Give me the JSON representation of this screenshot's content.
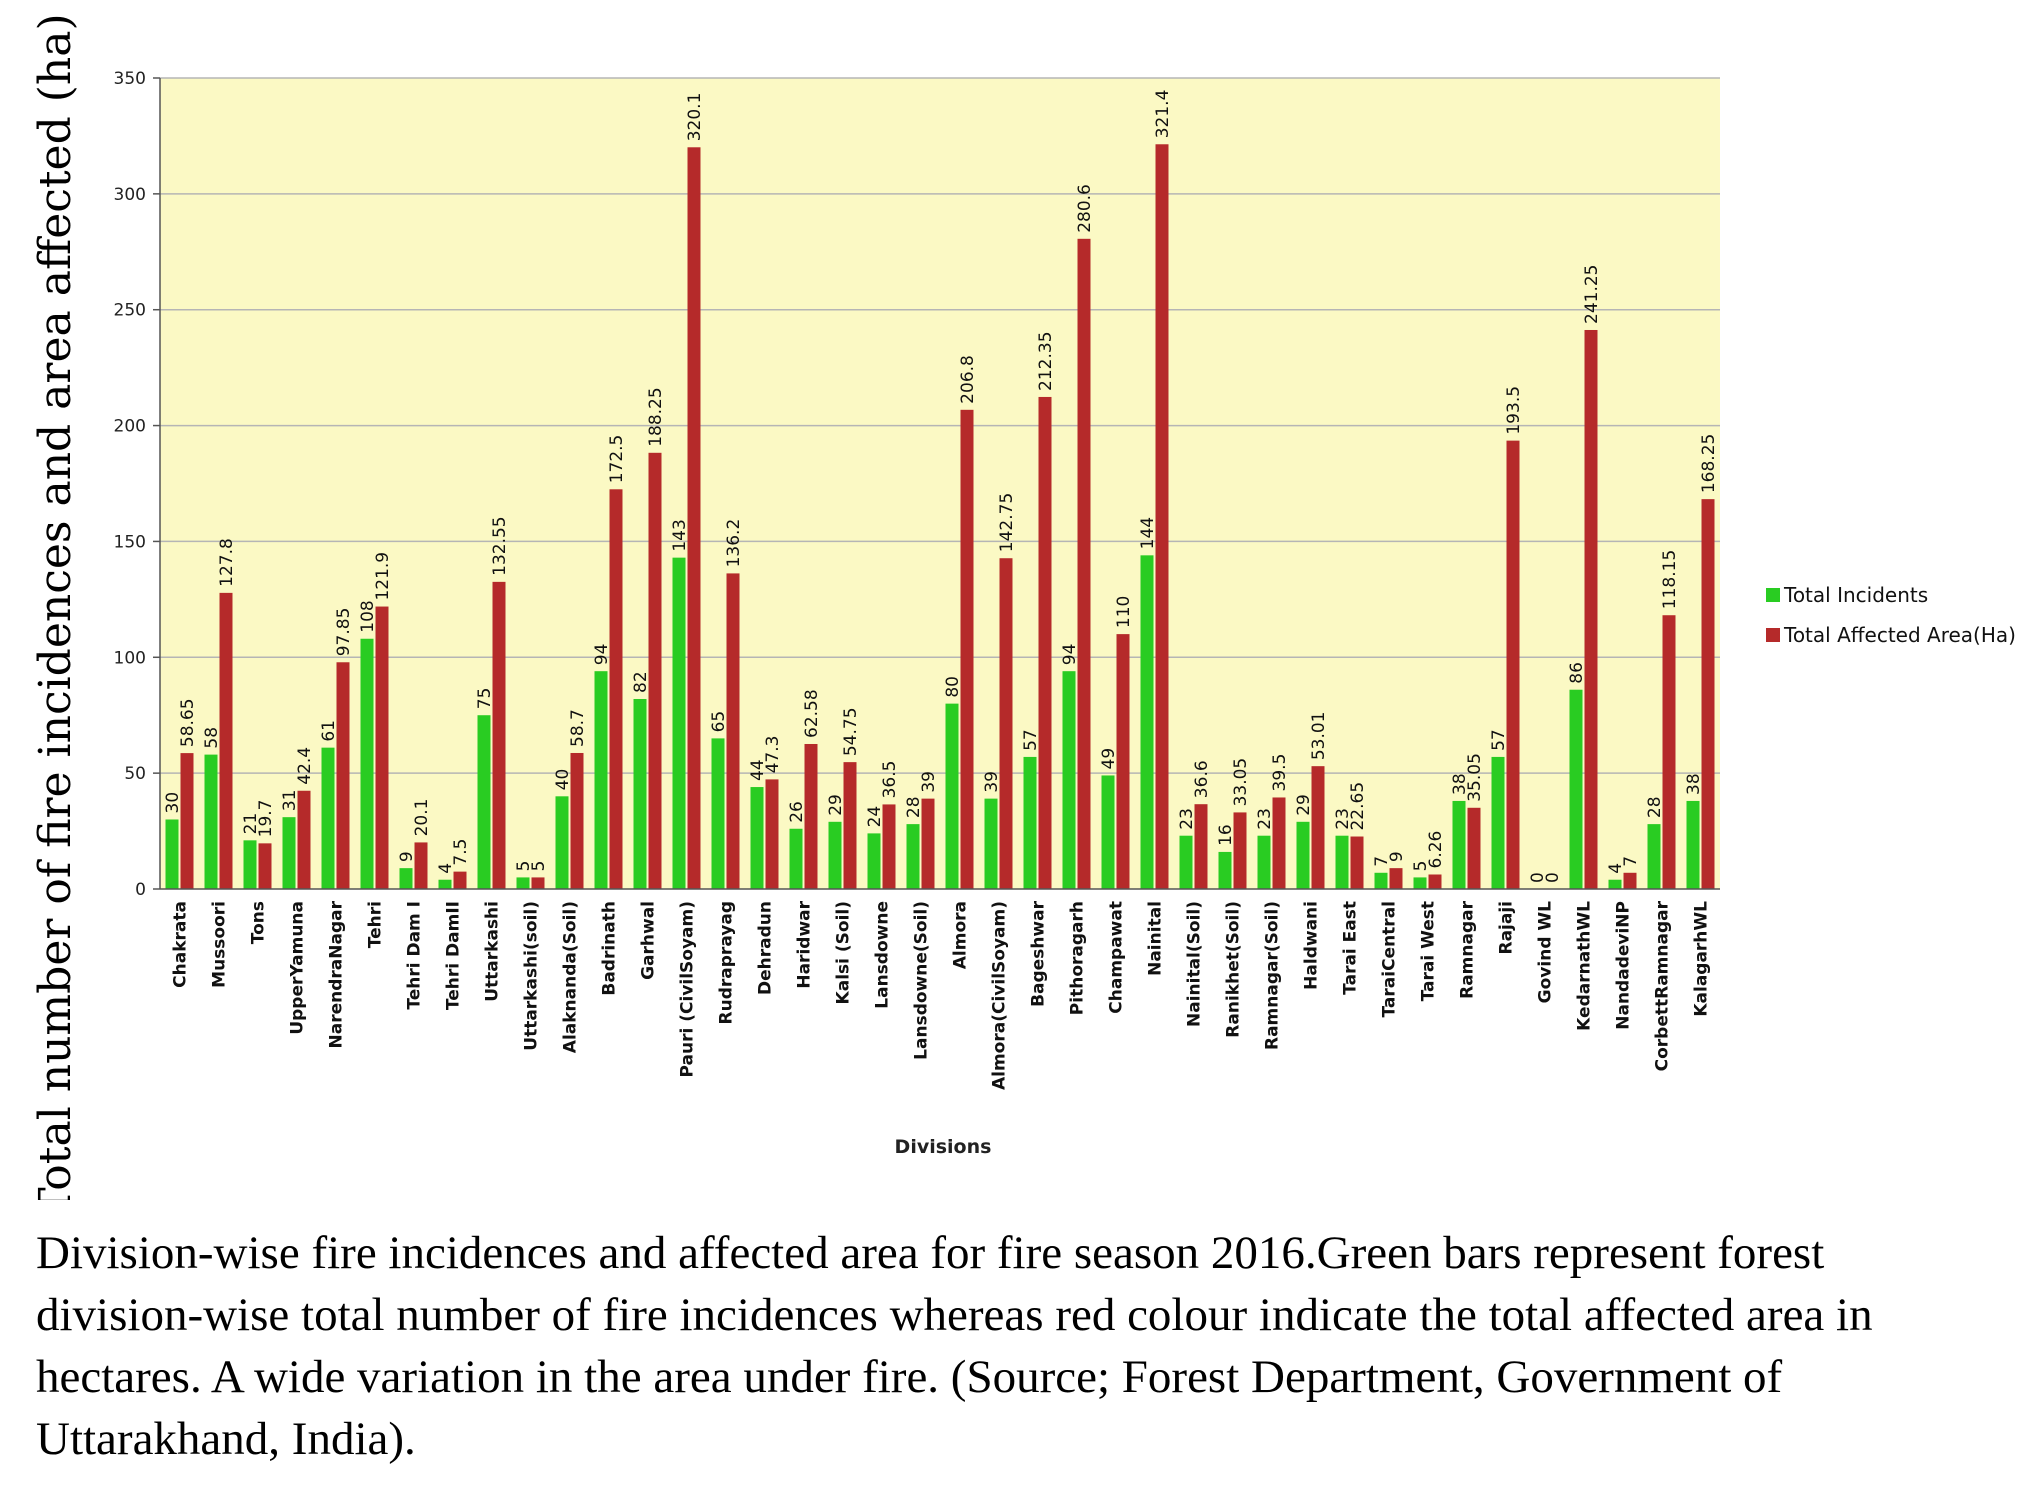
{
  "caption": "Division-wise fire incidences and affected area for fire season 2016.Green bars represent forest division-wise total number of fire incidences whereas red colour indicate the total affected area in hectares. A wide variation in the area under fire. (Source; Forest Department, Government of Uttarakhand, India).",
  "colors": {
    "plot_background": "#fbf9c4",
    "grid": "#b5b5b5",
    "incidents": "#29cc22",
    "area": "#b52a2a"
  },
  "chart_data": {
    "type": "bar",
    "xlabel": "Divisions",
    "ylabel": "Total number of fire incidences and area affected (ha)",
    "ylim": [
      0,
      350
    ],
    "yticks": [
      0,
      50,
      100,
      150,
      200,
      250,
      300,
      350
    ],
    "grid": true,
    "legend_position": "right",
    "categories": [
      "Chakrata",
      "Mussoori",
      "Tons",
      "UpperYamuna",
      "NarendraNagar",
      "Tehri",
      "Tehri Dam I",
      "Tehri DamII",
      "Uttarkashi",
      "Uttarkashi(soil)",
      "Alaknanda(Soil)",
      "Badrinath",
      "Garhwal",
      "Pauri (CivilSoyam)",
      "Rudraprayag",
      "Dehradun",
      "Haridwar",
      "Kalsi (Soil)",
      "Lansdowne",
      "Lansdowne(Soil)",
      "Almora",
      "Almora(CivilSoyam)",
      "Bageshwar",
      "Pithoragarh",
      "Champawat",
      "Nainital",
      "Nainital(Soil)",
      "Ranikhet(Soil)",
      "Ramnagar(Soil)",
      "Haldwani",
      "Tarai East",
      "TaraiCentral",
      "Tarai West",
      "Ramnagar",
      "Rajaji",
      "Govind WL",
      "KedarnathWL",
      "NandadeviNP",
      "CorbettRamnagar",
      "KalagarhWL"
    ],
    "series": [
      {
        "name": "Total Incidents",
        "values": [
          30,
          58,
          21,
          31,
          61,
          108,
          9,
          4,
          75,
          5,
          40,
          94,
          82,
          143,
          65,
          44,
          26,
          29,
          24,
          28,
          80,
          39,
          57,
          94,
          49,
          144,
          23,
          16,
          23,
          29,
          23,
          7,
          5,
          38,
          57,
          0,
          86,
          4,
          28,
          38
        ],
        "labels": [
          "30",
          "58",
          "21",
          "31",
          "61",
          "108",
          "9",
          "4",
          "75",
          "5",
          "40",
          "94",
          "82",
          "143",
          "65",
          "44",
          "26",
          "29",
          "24",
          "28",
          "80",
          "39",
          "57",
          "94",
          "49",
          "144",
          "23",
          "16",
          "23",
          "29",
          "23",
          "7",
          "5",
          "38",
          "57",
          "0",
          "86",
          "4",
          "28",
          "38"
        ]
      },
      {
        "name": "Total Affected Area(Ha)",
        "values": [
          58.65,
          127.8,
          19.7,
          42.4,
          97.85,
          121.9,
          20.1,
          7.5,
          132.55,
          5,
          58.7,
          172.5,
          188.25,
          320.1,
          136.2,
          47.3,
          62.58,
          54.75,
          36.5,
          39,
          206.8,
          142.75,
          212.35,
          280.6,
          110,
          321.4,
          36.6,
          33.05,
          39.5,
          53.01,
          22.65,
          9,
          6.26,
          35.05,
          193.5,
          0,
          241.25,
          7,
          118.15,
          168.25
        ],
        "labels": [
          "58.65",
          "127.8",
          "19.7",
          "42.4",
          "97.85",
          "121.9",
          "20.1",
          "7.5",
          "132.55",
          "5",
          "58.7",
          "172.5",
          "188.25",
          "320.1",
          "136.2",
          "47.3",
          "62.58",
          "54.75",
          "36.5",
          "39",
          "206.8",
          "142.75",
          "212.35",
          "280.6",
          "110",
          "321.4",
          "36.6",
          "33.05",
          "39.5",
          "53.01",
          "22.65",
          "9",
          "6.26",
          "35.05",
          "193.5",
          "0",
          "241.25",
          "7",
          "118.15",
          "168.25"
        ]
      }
    ]
  }
}
